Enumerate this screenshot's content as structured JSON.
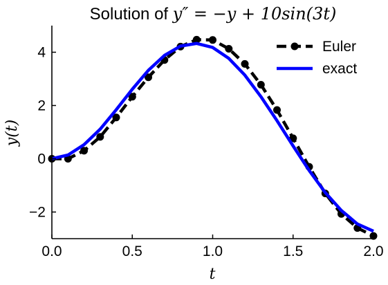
{
  "chart_data": {
    "type": "line",
    "title": "Solution of y″ = −y + 10sin(3t)",
    "xlabel": "t",
    "ylabel": "y(t)",
    "xlim": [
      0,
      2
    ],
    "ylim": [
      -3,
      5
    ],
    "xticks": [
      0,
      0.5,
      1,
      1.5,
      2
    ],
    "xtick_labels": [
      "0.0",
      "0.5",
      "1.0",
      "1.5",
      "2.0"
    ],
    "yticks": [
      -2,
      0,
      2,
      4
    ],
    "ytick_labels": [
      "−2",
      "0",
      "2",
      "4"
    ],
    "grid": false,
    "legend_position": "top-right",
    "series": [
      {
        "name": "Euler",
        "color": "#000000",
        "style": "dashed-with-markers",
        "x": [
          0,
          0.1,
          0.2,
          0.3,
          0.4,
          0.5,
          0.6,
          0.7,
          0.8,
          0.9,
          1.0,
          1.1,
          1.2,
          1.3,
          1.4,
          1.5,
          1.6,
          1.7,
          1.8,
          1.9,
          2.0
        ],
        "y": [
          0,
          0,
          0.3,
          0.82,
          1.55,
          2.33,
          3.06,
          3.71,
          4.21,
          4.47,
          4.46,
          4.13,
          3.56,
          2.78,
          1.83,
          0.77,
          -0.3,
          -1.3,
          -2.07,
          -2.6,
          -2.9
        ]
      },
      {
        "name": "exact",
        "color": "#0000ff",
        "style": "solid",
        "x": [
          0,
          0.1,
          0.2,
          0.3,
          0.4,
          0.5,
          0.6,
          0.7,
          0.8,
          0.9,
          1.0,
          1.1,
          1.2,
          1.3,
          1.4,
          1.5,
          1.6,
          1.7,
          1.8,
          1.9,
          2.0
        ],
        "y": [
          0,
          0.14,
          0.53,
          1.11,
          1.84,
          2.61,
          3.32,
          3.88,
          4.23,
          4.33,
          4.18,
          3.77,
          3.14,
          2.33,
          1.43,
          0.48,
          -0.44,
          -1.27,
          -1.94,
          -2.45,
          -2.72
        ]
      }
    ]
  }
}
